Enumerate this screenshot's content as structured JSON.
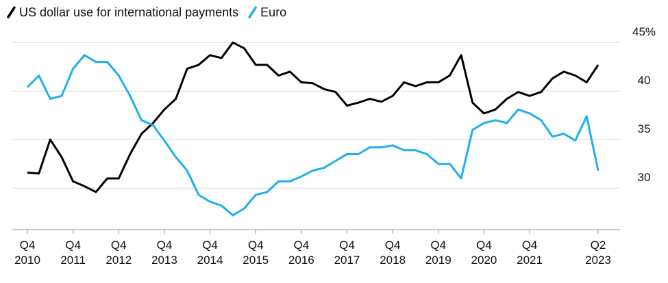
{
  "chart_data": {
    "type": "line",
    "x": [
      "Q4 2010",
      null,
      null,
      null,
      "Q4 2011",
      null,
      null,
      null,
      "Q4 2012",
      null,
      null,
      null,
      "Q4 2013",
      null,
      null,
      null,
      "Q4 2014",
      null,
      null,
      null,
      "Q4 2015",
      null,
      null,
      null,
      "Q4 2016",
      null,
      null,
      null,
      "Q4 2017",
      null,
      null,
      null,
      "Q4 2018",
      null,
      null,
      null,
      "Q4 2019",
      null,
      null,
      null,
      "Q4 2020",
      null,
      null,
      null,
      "Q4 2021",
      null,
      null,
      null,
      null,
      null,
      "Q2 2023"
    ],
    "series": [
      {
        "name": "US dollar use for international payments",
        "color": "#000000",
        "values": [
          31.6,
          31.5,
          35,
          33.2,
          30.7,
          30.2,
          29.6,
          31,
          31,
          33.5,
          35.6,
          36.7,
          38.1,
          39.2,
          42.3,
          42.7,
          43.7,
          43.4,
          45,
          44.4,
          42.7,
          42.7,
          41.6,
          42,
          40.9,
          40.8,
          40.2,
          39.9,
          38.5,
          38.8,
          39.2,
          38.9,
          39.5,
          40.9,
          40.5,
          40.9,
          40.9,
          41.6,
          43.7,
          38.8,
          37.7,
          38.1,
          39.2,
          39.9,
          39.5,
          39.9,
          41.3,
          42,
          41.6,
          40.9,
          42.7
        ]
      },
      {
        "name": "Euro",
        "color": "#1fb0ea",
        "values": [
          40.4,
          41.6,
          39.2,
          39.5,
          42.3,
          43.7,
          43,
          43,
          41.6,
          39.5,
          37,
          36.5,
          34.9,
          33.2,
          31.8,
          29.3,
          28.6,
          28.2,
          27.2,
          27.9,
          29.3,
          29.6,
          30.7,
          30.7,
          31.2,
          31.8,
          32.1,
          32.8,
          33.5,
          33.5,
          34.2,
          34.2,
          34.4,
          33.9,
          33.9,
          33.5,
          32.5,
          32.5,
          31,
          36,
          36.7,
          37,
          36.7,
          38.1,
          37.7,
          37,
          35.3,
          35.6,
          34.9,
          37.4,
          31.8
        ]
      }
    ],
    "ylim": [
      26,
      46
    ],
    "yticks": [
      30,
      35,
      40,
      {
        "value": 45,
        "label": "45%"
      }
    ],
    "grid": true
  }
}
